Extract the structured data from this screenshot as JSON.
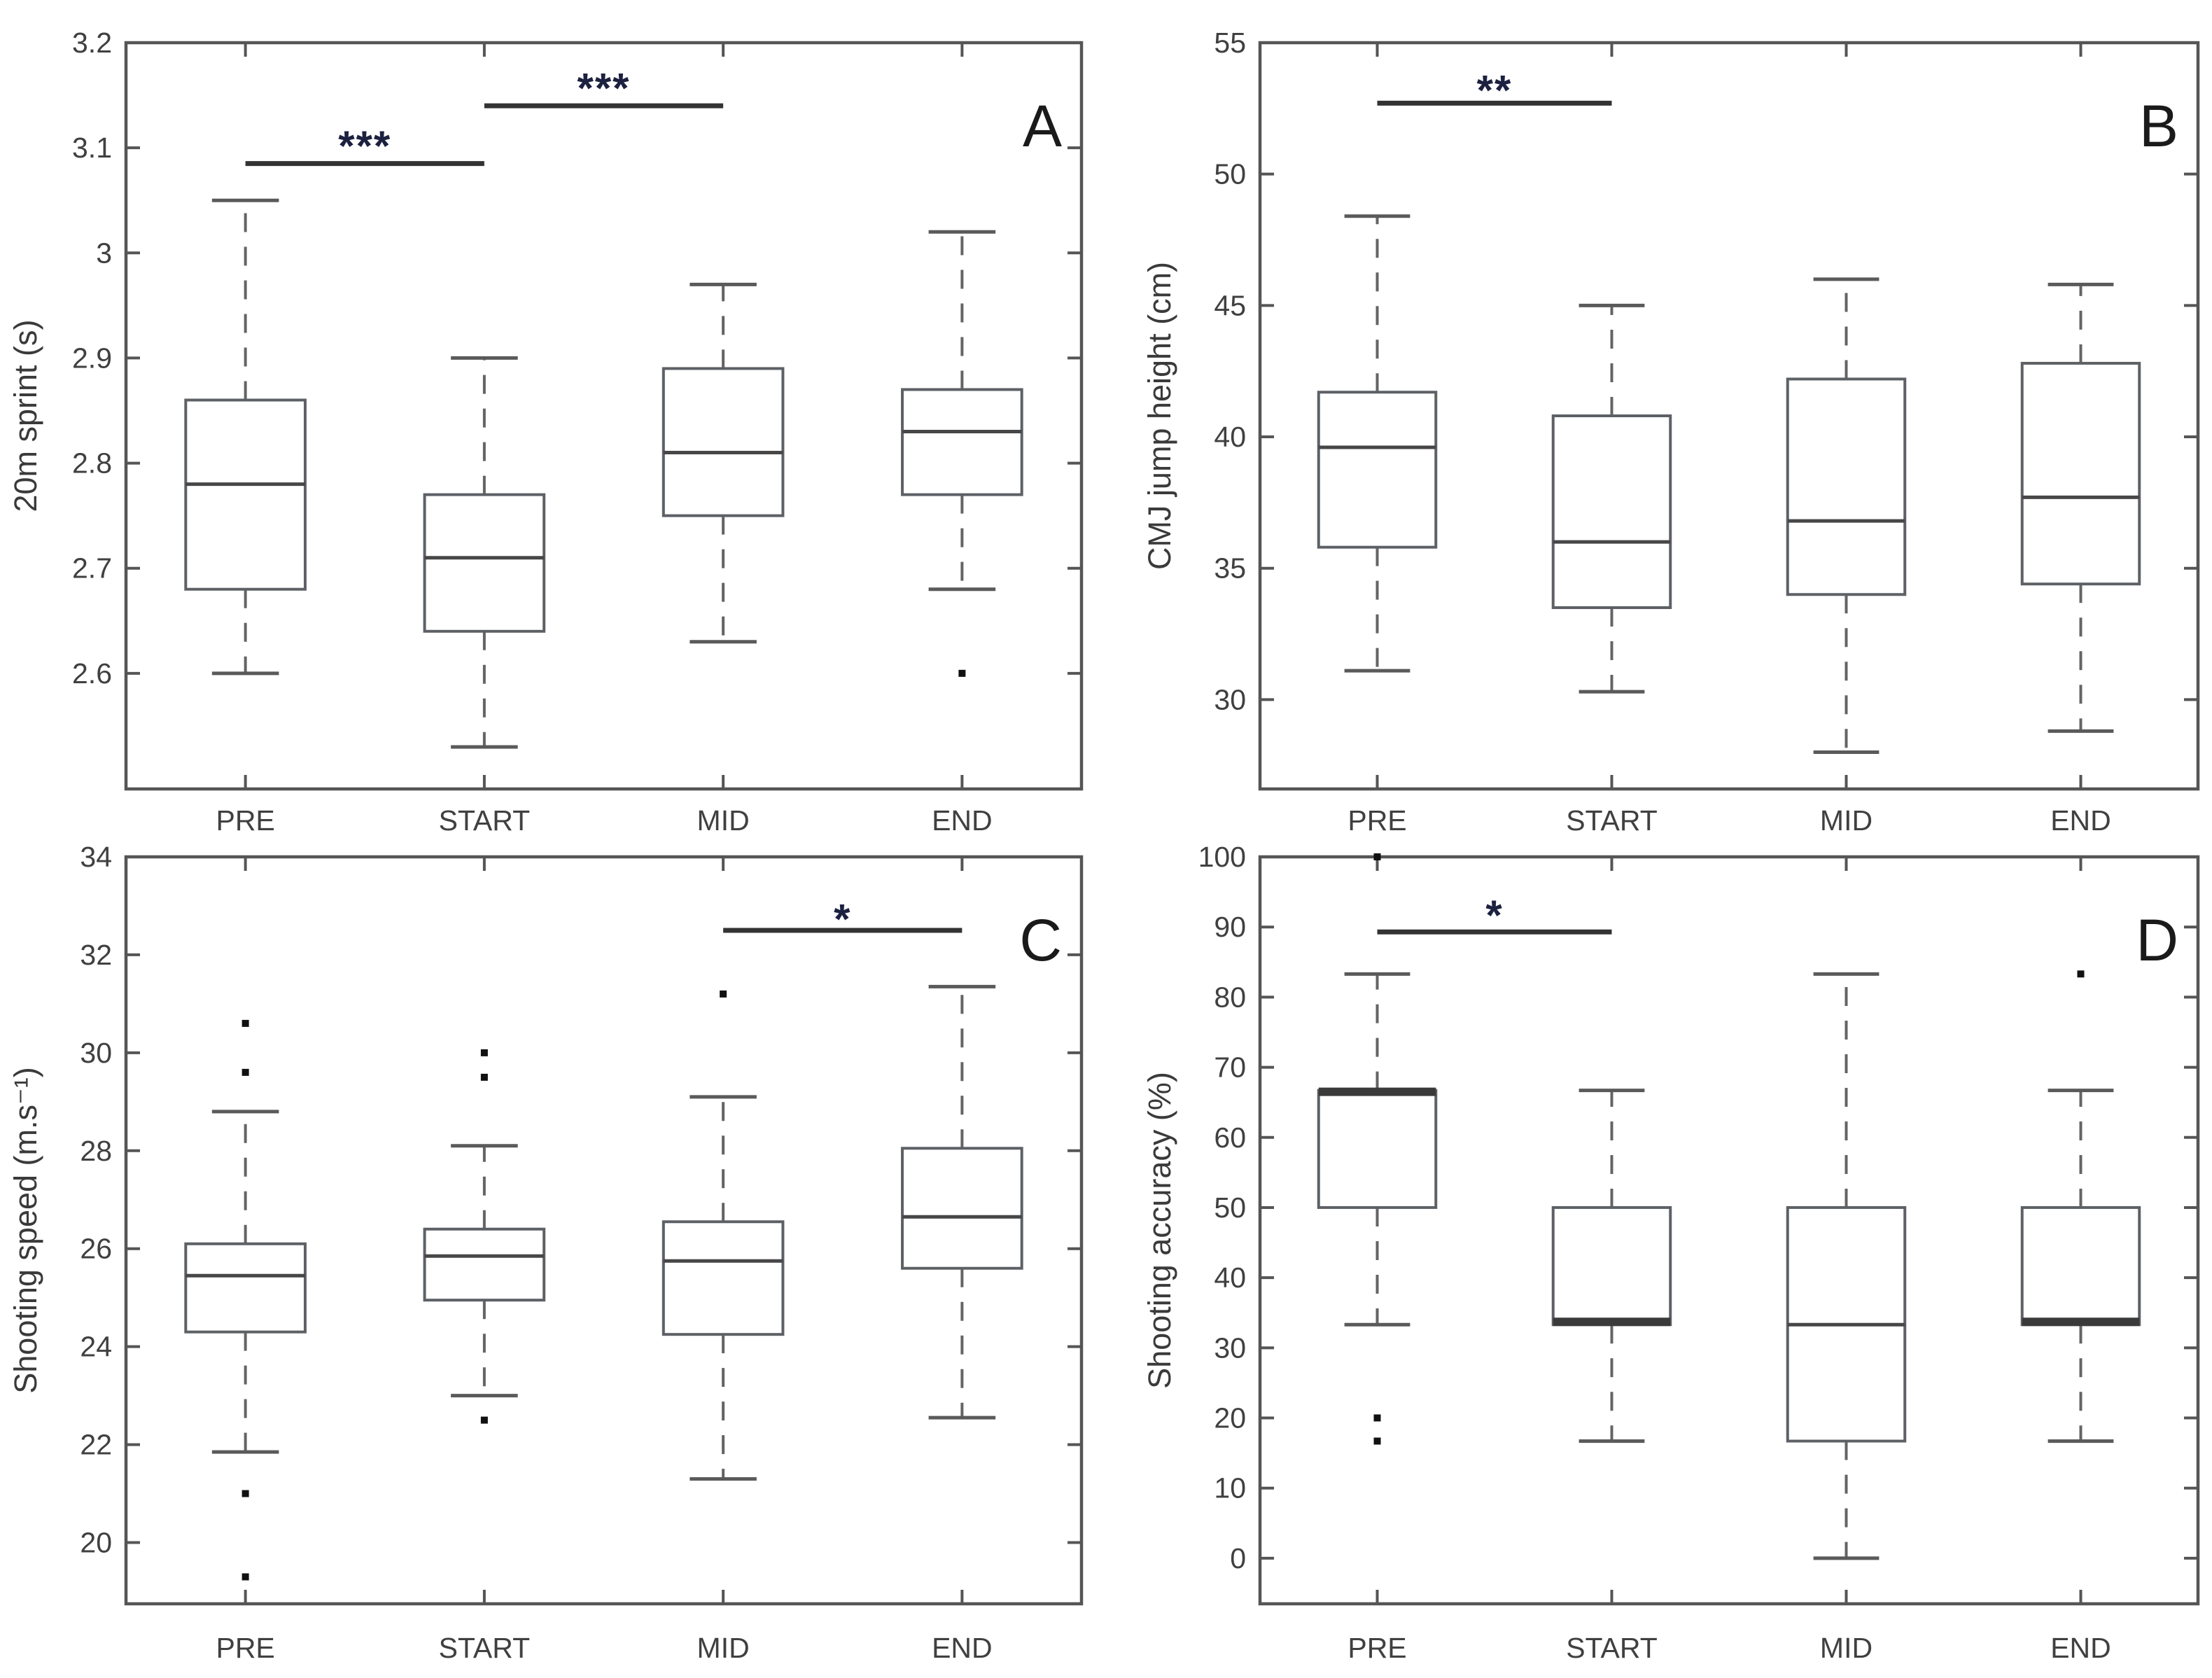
{
  "figure": {
    "background": "#ffffff",
    "description": "Four-panel boxplot figure comparing PRE, START, MID, END time points"
  },
  "colors": {
    "axis": "#555555",
    "box": "#5d6166",
    "box_fill": "#ffffff",
    "median": "#474747",
    "median_thick": "#3a3a3a",
    "whisker": "#646464",
    "cap": "#5a5a5a",
    "outlier": "#111111",
    "sig_line": "#333333",
    "stars": "#1d2140",
    "tick_text": "#404040",
    "label_text": "#3a3a3a",
    "panel_letter": "#1a1a1a"
  },
  "chart_data": [
    {
      "type": "box",
      "panel_label": "A",
      "ylabel": "20m sprint (s)",
      "categories": [
        "PRE",
        "START",
        "MID",
        "END"
      ],
      "ylim": [
        2.49,
        3.2
      ],
      "yticks": [
        {
          "v": 2.6,
          "label": "2.6"
        },
        {
          "v": 2.7,
          "label": "2.7"
        },
        {
          "v": 2.8,
          "label": "2.8"
        },
        {
          "v": 2.9,
          "label": "2.9"
        },
        {
          "v": 3.0,
          "label": "3"
        },
        {
          "v": 3.1,
          "label": "3.1"
        },
        {
          "v": 3.2,
          "label": "3.2"
        }
      ],
      "boxes": [
        {
          "category": "PRE",
          "whisker_low": 2.6,
          "q1": 2.68,
          "median": 2.78,
          "q3": 2.86,
          "whisker_high": 3.05,
          "outliers": [],
          "median_thick": false
        },
        {
          "category": "START",
          "whisker_low": 2.53,
          "q1": 2.64,
          "median": 2.71,
          "q3": 2.77,
          "whisker_high": 2.9,
          "outliers": [],
          "median_thick": false
        },
        {
          "category": "MID",
          "whisker_low": 2.63,
          "q1": 2.75,
          "median": 2.81,
          "q3": 2.89,
          "whisker_high": 2.97,
          "outliers": [],
          "median_thick": false
        },
        {
          "category": "END",
          "whisker_low": 2.68,
          "q1": 2.77,
          "median": 2.83,
          "q3": 2.87,
          "whisker_high": 3.02,
          "outliers": [
            2.6
          ],
          "median_thick": false
        }
      ],
      "significance": [
        {
          "from": 0,
          "to": 1,
          "bar_y": 3.085,
          "stars": "***",
          "stars_y": 3.112
        },
        {
          "from": 1,
          "to": 2,
          "bar_y": 3.14,
          "stars": "***",
          "stars_y": 3.167
        }
      ]
    },
    {
      "type": "box",
      "panel_label": "B",
      "ylabel": "CMJ jump height (cm)",
      "categories": [
        "PRE",
        "START",
        "MID",
        "END"
      ],
      "ylim": [
        26.6,
        55
      ],
      "yticks": [
        {
          "v": 30,
          "label": "30"
        },
        {
          "v": 35,
          "label": "35"
        },
        {
          "v": 40,
          "label": "40"
        },
        {
          "v": 45,
          "label": "45"
        },
        {
          "v": 50,
          "label": "50"
        },
        {
          "v": 55,
          "label": "55"
        }
      ],
      "boxes": [
        {
          "category": "PRE",
          "whisker_low": 31.1,
          "q1": 35.8,
          "median": 39.6,
          "q3": 41.7,
          "whisker_high": 48.4,
          "outliers": [],
          "median_thick": false
        },
        {
          "category": "START",
          "whisker_low": 30.3,
          "q1": 33.5,
          "median": 36.0,
          "q3": 40.8,
          "whisker_high": 45.0,
          "outliers": [],
          "median_thick": false
        },
        {
          "category": "MID",
          "whisker_low": 28.0,
          "q1": 34.0,
          "median": 36.8,
          "q3": 42.2,
          "whisker_high": 46.0,
          "outliers": [],
          "median_thick": false
        },
        {
          "category": "END",
          "whisker_low": 28.8,
          "q1": 34.4,
          "median": 37.7,
          "q3": 42.8,
          "whisker_high": 45.8,
          "outliers": [],
          "median_thick": false
        }
      ],
      "significance": [
        {
          "from": 0,
          "to": 1,
          "bar_y": 52.7,
          "stars": "**",
          "stars_y": 53.6
        }
      ]
    },
    {
      "type": "box",
      "panel_label": "C",
      "ylabel": "Shooting speed (m.s⁻¹)",
      "categories": [
        "PRE",
        "START",
        "MID",
        "END"
      ],
      "ylim": [
        18.75,
        34
      ],
      "yticks": [
        {
          "v": 20,
          "label": "20"
        },
        {
          "v": 22,
          "label": "22"
        },
        {
          "v": 24,
          "label": "24"
        },
        {
          "v": 26,
          "label": "26"
        },
        {
          "v": 28,
          "label": "28"
        },
        {
          "v": 30,
          "label": "30"
        },
        {
          "v": 32,
          "label": "32"
        },
        {
          "v": 34,
          "label": "34"
        }
      ],
      "boxes": [
        {
          "category": "PRE",
          "whisker_low": 21.85,
          "q1": 24.3,
          "median": 25.45,
          "q3": 26.1,
          "whisker_high": 28.8,
          "outliers": [
            30.6,
            29.6,
            21.0,
            19.3
          ],
          "median_thick": false
        },
        {
          "category": "START",
          "whisker_low": 23.0,
          "q1": 24.95,
          "median": 25.85,
          "q3": 26.4,
          "whisker_high": 28.1,
          "outliers": [
            30.0,
            29.5,
            22.5
          ],
          "median_thick": false
        },
        {
          "category": "MID",
          "whisker_low": 21.3,
          "q1": 24.25,
          "median": 25.75,
          "q3": 26.55,
          "whisker_high": 29.1,
          "outliers": [
            31.2
          ],
          "median_thick": false
        },
        {
          "category": "END",
          "whisker_low": 22.55,
          "q1": 25.6,
          "median": 26.65,
          "q3": 28.05,
          "whisker_high": 31.35,
          "outliers": [],
          "median_thick": false
        }
      ],
      "significance": [
        {
          "from": 2,
          "to": 3,
          "bar_y": 32.5,
          "stars": "*",
          "stars_y": 32.95
        }
      ]
    },
    {
      "type": "box",
      "panel_label": "D",
      "ylabel": "Shooting accuracy (%)",
      "categories": [
        "PRE",
        "START",
        "MID",
        "END"
      ],
      "ylim": [
        -6.5,
        100
      ],
      "yticks": [
        {
          "v": 0,
          "label": "0"
        },
        {
          "v": 10,
          "label": "10"
        },
        {
          "v": 20,
          "label": "20"
        },
        {
          "v": 30,
          "label": "30"
        },
        {
          "v": 40,
          "label": "40"
        },
        {
          "v": 50,
          "label": "50"
        },
        {
          "v": 60,
          "label": "60"
        },
        {
          "v": 70,
          "label": "70"
        },
        {
          "v": 80,
          "label": "80"
        },
        {
          "v": 90,
          "label": "90"
        },
        {
          "v": 100,
          "label": "100"
        }
      ],
      "boxes": [
        {
          "category": "PRE",
          "whisker_low": 33.3,
          "q1": 50.0,
          "median": 66.5,
          "q3": 66.7,
          "whisker_high": 83.3,
          "outliers": [
            100,
            20,
            16.7
          ],
          "median_thick": true
        },
        {
          "category": "START",
          "whisker_low": 16.7,
          "q1": 33.3,
          "median": 33.7,
          "q3": 50.0,
          "whisker_high": 66.7,
          "outliers": [],
          "median_thick": true
        },
        {
          "category": "MID",
          "whisker_low": 0.0,
          "q1": 16.7,
          "median": 33.3,
          "q3": 50.0,
          "whisker_high": 83.3,
          "outliers": [],
          "median_thick": false
        },
        {
          "category": "END",
          "whisker_low": 16.7,
          "q1": 33.3,
          "median": 33.7,
          "q3": 50.0,
          "whisker_high": 66.7,
          "outliers": [
            83.3
          ],
          "median_thick": true
        }
      ],
      "significance": [
        {
          "from": 0,
          "to": 1,
          "bar_y": 89.3,
          "stars": "*",
          "stars_y": 93.2
        }
      ]
    }
  ]
}
